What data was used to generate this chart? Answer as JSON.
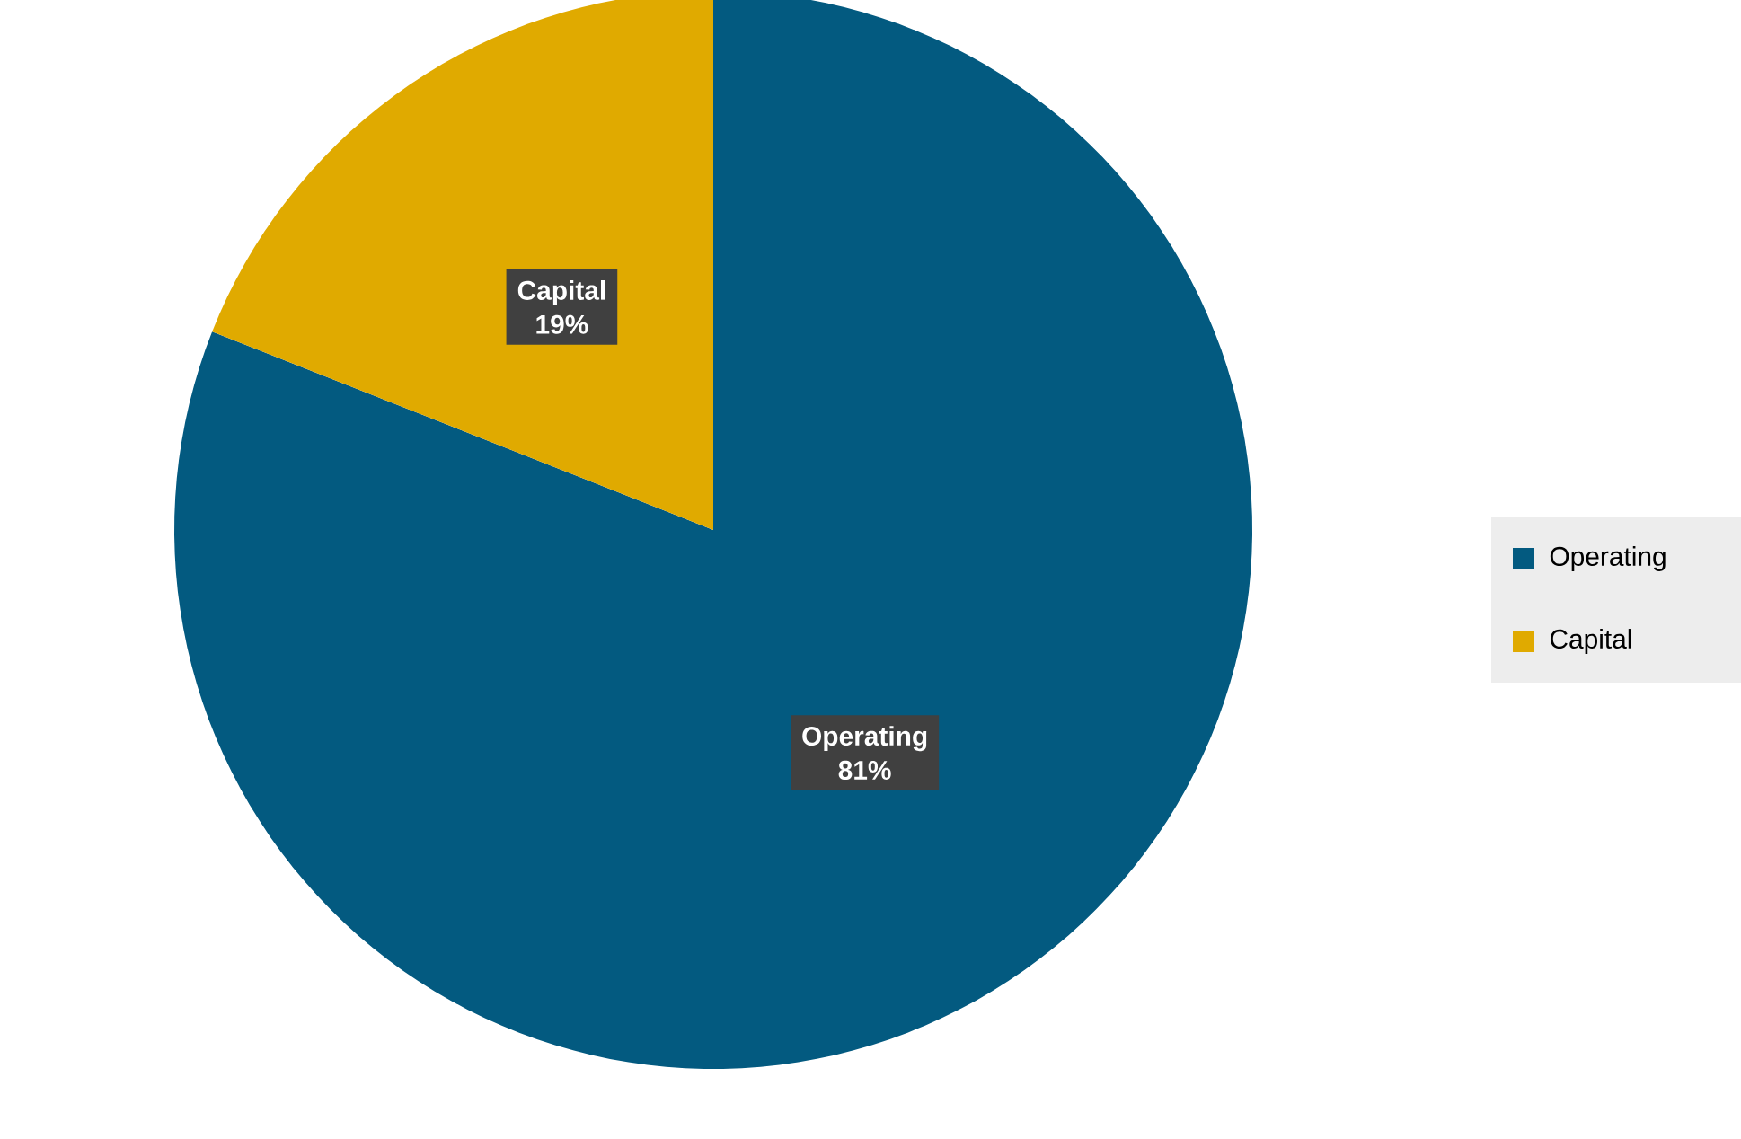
{
  "chart_data": {
    "type": "pie",
    "categories": [
      "Operating",
      "Capital"
    ],
    "values": [
      81,
      19
    ],
    "colors": [
      "#035a80",
      "#e0aa00"
    ],
    "value_labels": [
      "81%",
      "19%"
    ],
    "legend": "right"
  }
}
